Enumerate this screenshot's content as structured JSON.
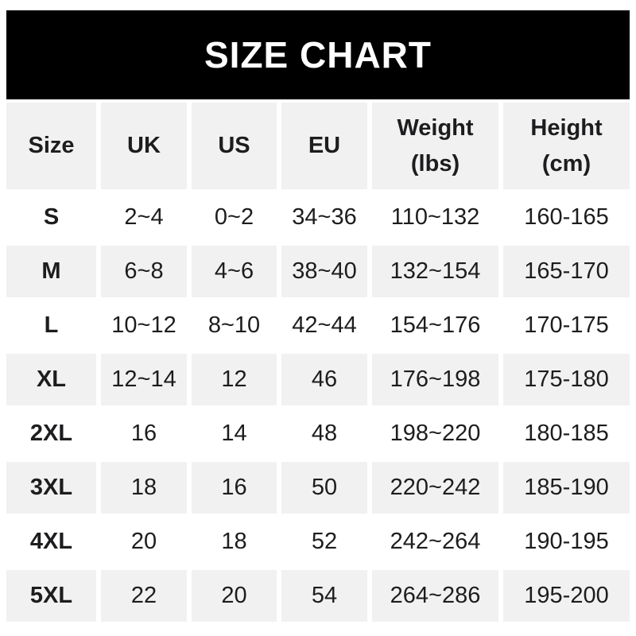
{
  "title": "SIZE CHART",
  "colors": {
    "banner_bg": "#000000",
    "banner_text": "#ffffff",
    "cell_gray": "#f1f1f1",
    "text": "#1d1d1f",
    "page_bg": "#ffffff"
  },
  "header": {
    "columns": [
      {
        "label": "Size"
      },
      {
        "label": "UK"
      },
      {
        "label": "US"
      },
      {
        "label": "EU"
      },
      {
        "label": "Weight",
        "sub": "(lbs)"
      },
      {
        "label": "Height",
        "sub": "(cm)"
      }
    ]
  },
  "chart_data": {
    "type": "table",
    "title": "SIZE CHART",
    "columns": [
      "Size",
      "UK",
      "US",
      "EU",
      "Weight (lbs)",
      "Height (cm)"
    ],
    "rows": [
      [
        "S",
        "2~4",
        "0~2",
        "34~36",
        "110~132",
        "160-165"
      ],
      [
        "M",
        "6~8",
        "4~6",
        "38~40",
        "132~154",
        "165-170"
      ],
      [
        "L",
        "10~12",
        "8~10",
        "42~44",
        "154~176",
        "170-175"
      ],
      [
        "XL",
        "12~14",
        "12",
        "46",
        "176~198",
        "175-180"
      ],
      [
        "2XL",
        "16",
        "14",
        "48",
        "198~220",
        "180-185"
      ],
      [
        "3XL",
        "18",
        "16",
        "50",
        "220~242",
        "185-190"
      ],
      [
        "4XL",
        "20",
        "18",
        "52",
        "242~264",
        "190-195"
      ],
      [
        "5XL",
        "22",
        "20",
        "54",
        "264~286",
        "195-200"
      ]
    ],
    "layout": {
      "row_striping": "header gray, then rows alternate white/gray starting with white",
      "separator_uk_us_eu_weight": "~",
      "separator_height": "-"
    }
  }
}
